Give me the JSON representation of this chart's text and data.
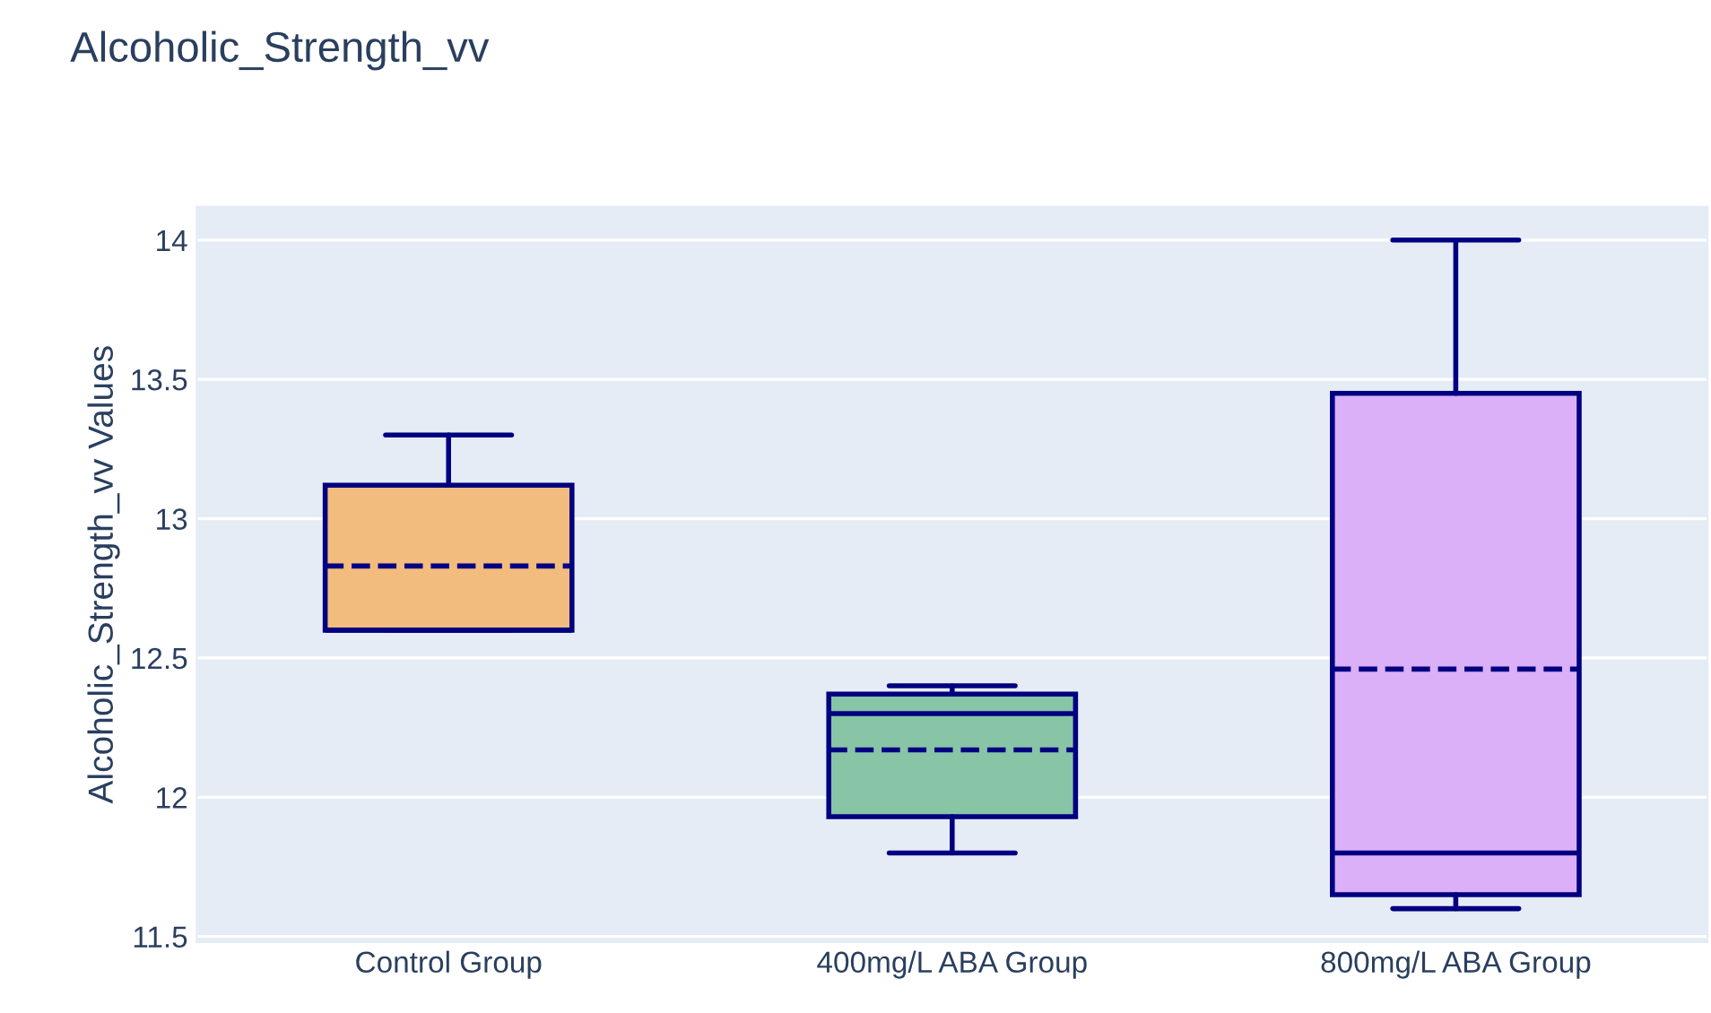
{
  "chart_data": {
    "type": "box",
    "title": "Alcoholic_Strength_vv",
    "ylabel": "Alcoholic_Strength_vv Values",
    "categories": [
      "Control Group",
      "400mg/L ABA Group",
      "800mg/L ABA Group"
    ],
    "boxes": [
      {
        "low": 12.6,
        "q1": 12.6,
        "median": 12.6,
        "q3": 13.12,
        "high": 13.3,
        "mean": 12.83
      },
      {
        "low": 11.8,
        "q1": 11.93,
        "median": 12.3,
        "q3": 12.37,
        "high": 12.4,
        "mean": 12.17
      },
      {
        "low": 11.6,
        "q1": 11.65,
        "median": 11.8,
        "q3": 13.45,
        "high": 14.0,
        "mean": 12.46
      }
    ],
    "colors": [
      "#f2bc7f",
      "#88c4a6",
      "#dbb0f8"
    ],
    "ylim": [
      11.48,
      14.12
    ],
    "yticks": [
      11.5,
      12,
      12.5,
      13,
      13.5,
      14
    ],
    "grid": "y",
    "legend": false
  }
}
